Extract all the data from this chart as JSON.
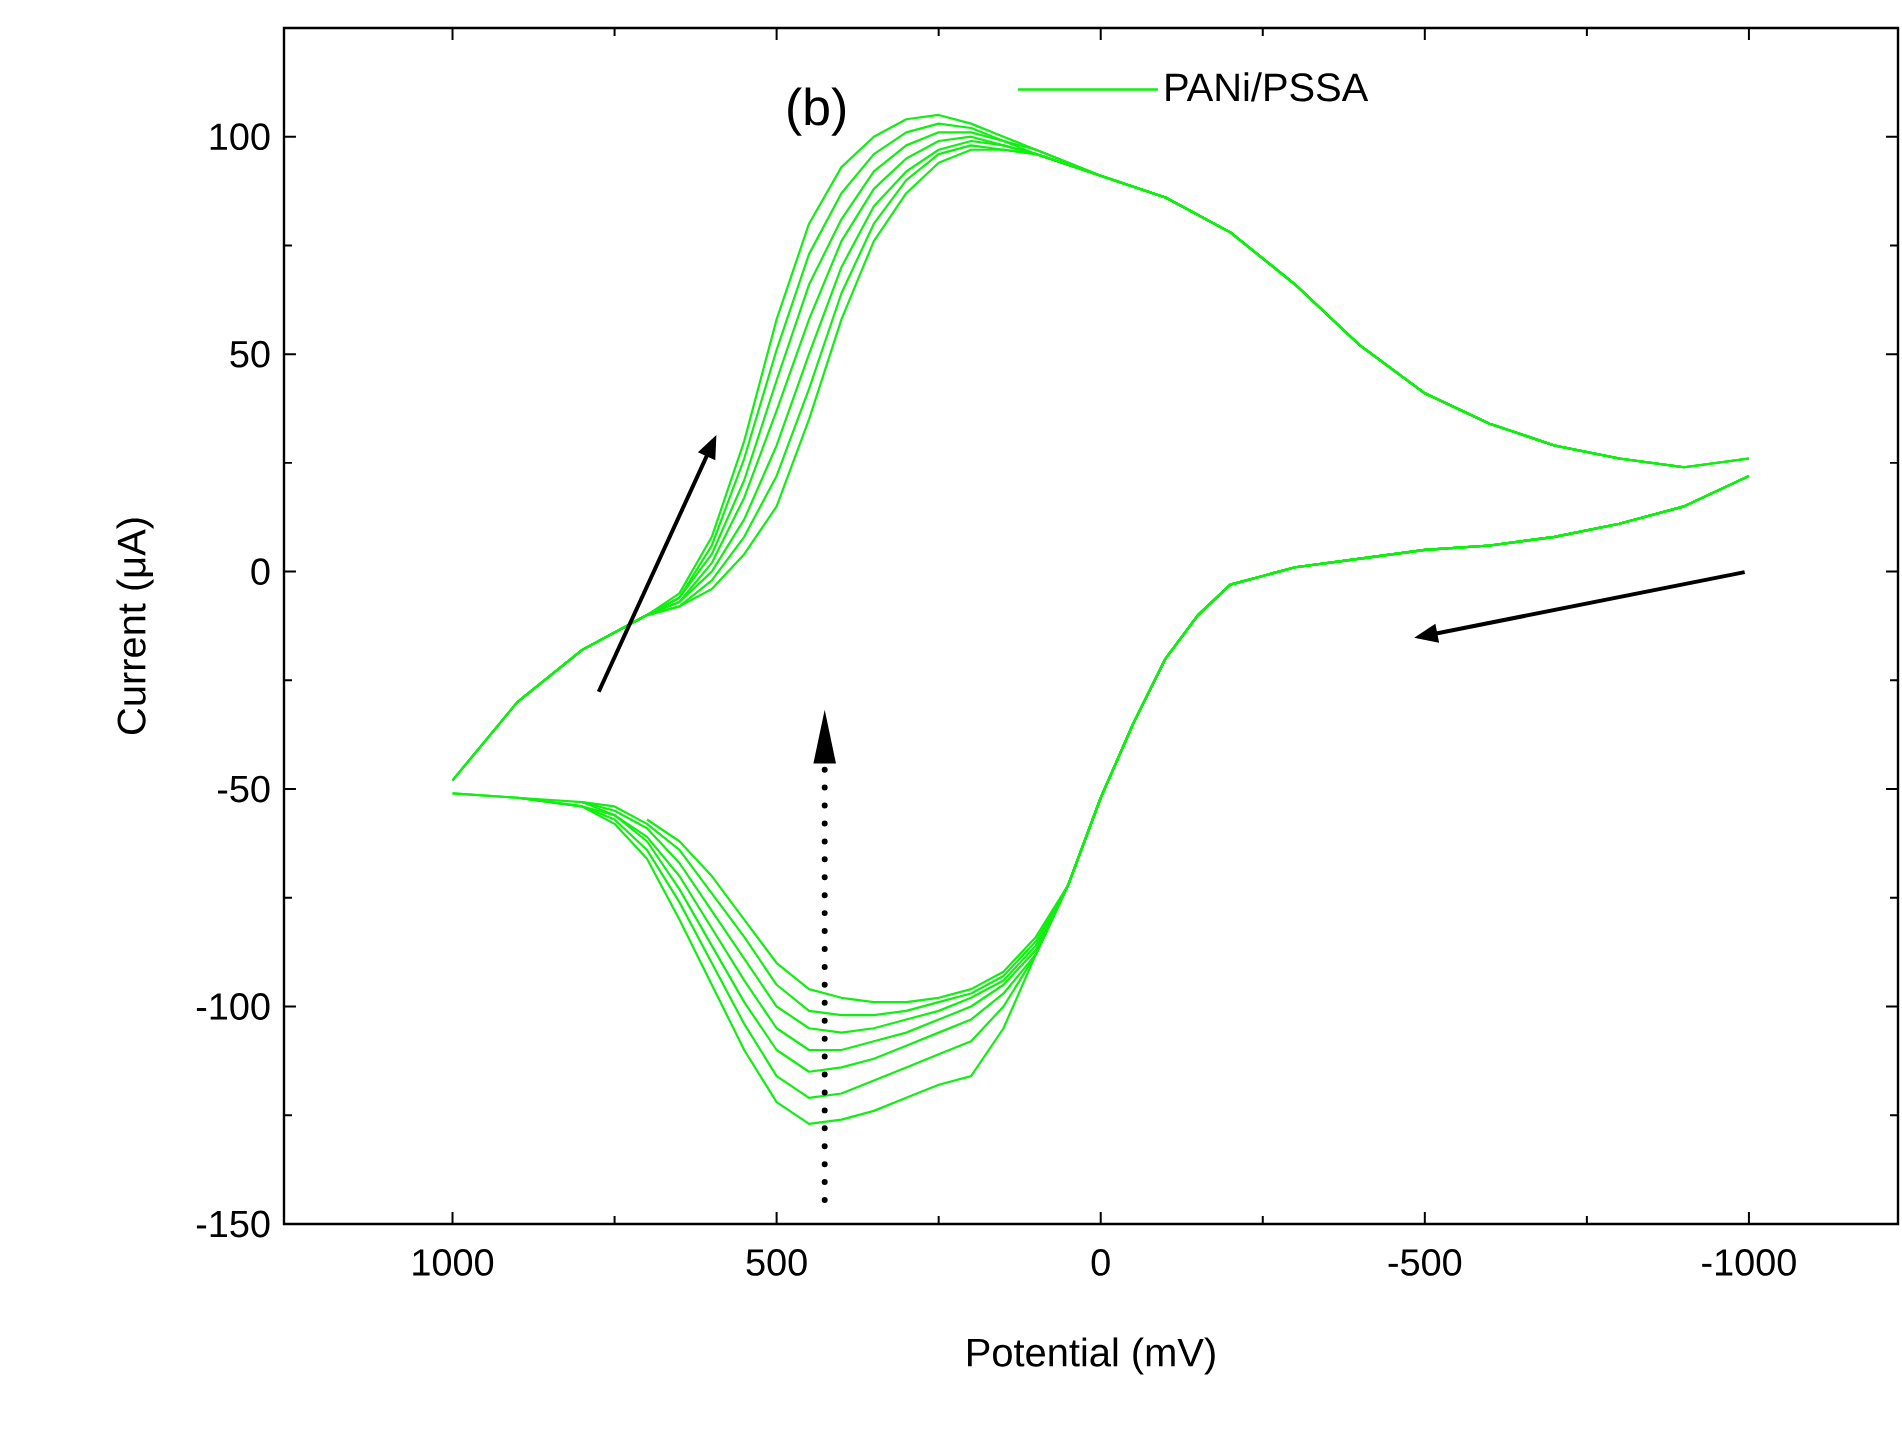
{
  "chart_data": {
    "type": "line",
    "title": "(b)",
    "xlabel": "Potential (mV)",
    "ylabel": "Current (μA)",
    "xlim": [
      1260,
      -1230
    ],
    "ylim": [
      -150,
      125
    ],
    "xticks": [
      1000,
      500,
      0,
      -500,
      -1000
    ],
    "yticks": [
      -150,
      -100,
      -50,
      0,
      50,
      100
    ],
    "legend": "top",
    "grid": false,
    "line_style": "solid",
    "marker": "none",
    "series": [
      {
        "name": "PANi/PSSA",
        "color": "#11ee11",
        "x": [
          1000,
          900,
          800,
          700,
          650,
          600,
          550,
          500,
          450,
          400,
          350,
          300,
          250,
          200,
          150,
          100,
          0,
          -100,
          -200,
          -300,
          -400,
          -500,
          -600,
          -700,
          -800,
          -900,
          -1000
        ],
        "values": [
          -48,
          -30,
          -18,
          -10,
          -5,
          8,
          30,
          58,
          80,
          93,
          100,
          104,
          105,
          103,
          100,
          97,
          91,
          86,
          78,
          66,
          52,
          41,
          34,
          29,
          26,
          24,
          26
        ]
      },
      {
        "color": "#11ee11",
        "x": [
          1000,
          900,
          800,
          700,
          650,
          600,
          550,
          500,
          450,
          400,
          350,
          300,
          250,
          200,
          150,
          100,
          0,
          -100,
          -200,
          -300,
          -400,
          -500,
          -600,
          -700,
          -800,
          -900
        ],
        "values": [
          -48,
          -30,
          -18,
          -10,
          -6,
          6,
          26,
          51,
          73,
          87,
          96,
          101,
          103,
          102,
          99,
          97,
          91,
          86,
          78,
          66,
          52,
          41,
          34,
          29,
          26,
          24
        ]
      },
      {
        "color": "#11ee11",
        "x": [
          900,
          800,
          700,
          650,
          600,
          550,
          500,
          450,
          400,
          350,
          300,
          250,
          200,
          150,
          100,
          0,
          -100,
          -200,
          -300,
          -400,
          -500,
          -600,
          -700,
          -800,
          -900,
          -1000
        ],
        "values": [
          -30,
          -18,
          -10,
          -6,
          4,
          21,
          44,
          66,
          81,
          92,
          98,
          101,
          101,
          99,
          96,
          91,
          86,
          78,
          66,
          52,
          41,
          34,
          29,
          26,
          24,
          26
        ]
      },
      {
        "color": "#11ee11",
        "x": [
          800,
          700,
          650,
          600,
          550,
          500,
          450,
          400,
          350,
          300,
          250,
          200,
          150,
          100,
          0,
          -100,
          -200,
          -300,
          -400,
          -500,
          -600,
          -700,
          -800,
          -900
        ],
        "values": [
          -18,
          -10,
          -7,
          2,
          17,
          37,
          58,
          76,
          88,
          95,
          99,
          100,
          98,
          96,
          91,
          86,
          78,
          66,
          52,
          41,
          34,
          29,
          26,
          24
        ]
      },
      {
        "color": "#11ee11",
        "x": [
          700,
          650,
          600,
          550,
          500,
          450,
          400,
          350,
          300,
          250,
          200,
          150,
          100,
          0,
          -100,
          -200,
          -300,
          -400,
          -500,
          -600,
          -700,
          -800,
          -900,
          -1000
        ],
        "values": [
          -10,
          -7,
          0,
          12,
          29,
          50,
          70,
          84,
          92,
          97,
          99,
          98,
          96,
          91,
          86,
          78,
          66,
          52,
          41,
          34,
          29,
          26,
          24,
          26
        ]
      },
      {
        "color": "#11ee11",
        "x": [
          1000,
          900,
          800,
          700,
          650,
          600,
          550,
          500,
          450,
          400,
          350,
          300,
          250,
          200,
          150,
          100,
          0,
          -100,
          -200,
          -300,
          -400,
          -500,
          -600,
          -700,
          -800
        ],
        "values": [
          -48,
          -30,
          -18,
          -10,
          -8,
          -2,
          8,
          22,
          42,
          64,
          80,
          90,
          96,
          98,
          97,
          96,
          91,
          86,
          78,
          66,
          52,
          41,
          34,
          29,
          26
        ]
      },
      {
        "color": "#11ee11",
        "x": [
          900,
          800,
          700,
          650,
          600,
          550,
          500,
          450,
          400,
          350,
          300,
          250,
          200,
          150,
          100,
          0,
          -100,
          -200,
          -300,
          -400,
          -500,
          -600,
          -700,
          -800
        ],
        "values": [
          -30,
          -18,
          -10,
          -8,
          -4,
          4,
          15,
          35,
          58,
          76,
          87,
          94,
          97,
          97,
          96,
          91,
          86,
          78,
          66,
          52,
          41,
          34,
          29,
          26
        ]
      },
      {
        "color": "#11ee11",
        "x": [
          1000,
          900,
          800,
          750,
          700,
          650,
          600,
          550,
          500,
          450,
          400,
          350,
          300,
          250,
          200,
          150,
          100,
          50,
          0,
          -50,
          -100,
          -150,
          -200,
          -250,
          -300,
          -400,
          -500,
          -600,
          -700,
          -800,
          -900,
          -1000
        ],
        "values": [
          -51,
          -52,
          -54,
          -58,
          -66,
          -80,
          -95,
          -110,
          -122,
          -127,
          -126,
          -124,
          -121,
          -118,
          -116,
          -105,
          -88,
          -72,
          -52,
          -35,
          -20,
          -10,
          -3,
          -1,
          1,
          3,
          5,
          6,
          8,
          11,
          15,
          22
        ]
      },
      {
        "color": "#11ee11",
        "x": [
          900,
          800,
          750,
          700,
          650,
          600,
          550,
          500,
          450,
          400,
          350,
          300,
          250,
          200,
          150,
          100,
          50,
          0,
          -50,
          -100,
          -150,
          -200,
          -250,
          -300,
          -400,
          -500,
          -600,
          -700,
          -800,
          -900,
          -1000
        ],
        "values": [
          -52,
          -54,
          -57,
          -64,
          -76,
          -90,
          -104,
          -116,
          -121,
          -120,
          -117,
          -114,
          -111,
          -108,
          -100,
          -88,
          -72,
          -52,
          -35,
          -20,
          -10,
          -3,
          -1,
          1,
          3,
          5,
          6,
          8,
          11,
          15,
          22
        ]
      },
      {
        "color": "#11ee11",
        "x": [
          900,
          800,
          750,
          700,
          650,
          600,
          550,
          500,
          450,
          400,
          350,
          300,
          250,
          200,
          150,
          100,
          50,
          0,
          -50,
          -100,
          -150,
          -200,
          -250,
          -300,
          -400,
          -500,
          -600,
          -700,
          -800,
          -900
        ],
        "values": [
          -52,
          -54,
          -56,
          -62,
          -73,
          -86,
          -99,
          -110,
          -115,
          -114,
          -112,
          -109,
          -106,
          -103,
          -97,
          -88,
          -72,
          -52,
          -35,
          -20,
          -10,
          -3,
          -1,
          1,
          3,
          5,
          6,
          8,
          11,
          15
        ]
      },
      {
        "color": "#11ee11",
        "x": [
          800,
          750,
          700,
          650,
          600,
          550,
          500,
          450,
          400,
          350,
          300,
          250,
          200,
          150,
          100,
          50,
          0,
          -50,
          -100,
          -150,
          -200,
          -250,
          -300,
          -400,
          -500,
          -600,
          -700,
          -800,
          -900,
          -1000
        ],
        "values": [
          -53,
          -56,
          -61,
          -70,
          -82,
          -94,
          -105,
          -110,
          -110,
          -108,
          -106,
          -103,
          -100,
          -95,
          -87,
          -72,
          -52,
          -35,
          -20,
          -10,
          -3,
          -1,
          1,
          3,
          5,
          6,
          8,
          11,
          15,
          22
        ]
      },
      {
        "color": "#11ee11",
        "x": [
          800,
          750,
          700,
          650,
          600,
          550,
          500,
          450,
          400,
          350,
          300,
          250,
          200,
          150,
          100,
          50,
          0,
          -50,
          -100,
          -150,
          -200,
          -250,
          -300,
          -400,
          -500,
          -600,
          -700,
          -800,
          -900
        ],
        "values": [
          -53,
          -55,
          -59,
          -67,
          -78,
          -89,
          -100,
          -105,
          -106,
          -105,
          -103,
          -101,
          -98,
          -94,
          -86,
          -72,
          -52,
          -35,
          -20,
          -10,
          -3,
          -1,
          1,
          3,
          5,
          6,
          8,
          11,
          15
        ]
      },
      {
        "color": "#11ee11",
        "x": [
          1000,
          900,
          800,
          750,
          700,
          650,
          600,
          550,
          500,
          450,
          400,
          350,
          300,
          250,
          200,
          150,
          100,
          50,
          0,
          -50,
          -100,
          -150,
          -200,
          -250,
          -300,
          -400,
          -500,
          -600,
          -700,
          -800,
          -900
        ],
        "values": [
          -51,
          -52,
          -53,
          -54,
          -58,
          -64,
          -74,
          -84,
          -95,
          -101,
          -102,
          -102,
          -101,
          -99,
          -97,
          -93,
          -85,
          -72,
          -52,
          -35,
          -20,
          -10,
          -3,
          -1,
          1,
          3,
          5,
          6,
          8,
          11,
          15
        ]
      },
      {
        "color": "#11ee11",
        "x": [
          700,
          650,
          600,
          550,
          500,
          450,
          400,
          350,
          300,
          250,
          200,
          150,
          100,
          50,
          0,
          -50,
          -100,
          -150,
          -200,
          -250,
          -300,
          -400,
          -500,
          -600,
          -700,
          -800,
          -900,
          -1000
        ],
        "values": [
          -57,
          -62,
          -70,
          -80,
          -90,
          -96,
          -98,
          -99,
          -99,
          -98,
          -96,
          -92,
          -84,
          -72,
          -52,
          -35,
          -20,
          -10,
          -3,
          -1,
          1,
          3,
          5,
          6,
          8,
          11,
          15,
          22
        ]
      }
    ]
  }
}
